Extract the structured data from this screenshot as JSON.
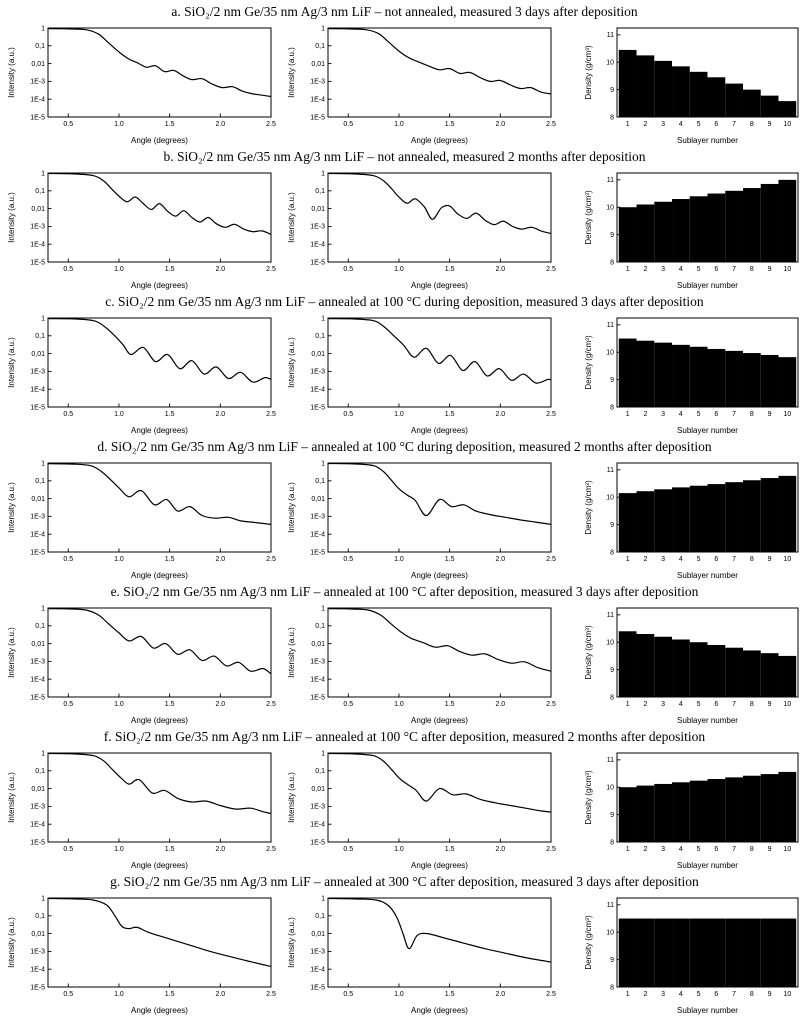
{
  "colors": {
    "curve": "#000000",
    "bar": "#000000",
    "frame": "#000000",
    "background": "#ffffff"
  },
  "rows": [
    {
      "id": "a",
      "title": "a. SiO₂/2 nm Ge/35 nm Ag/3 nm LiF – not annealed, measured 3 days after deposition"
    },
    {
      "id": "b",
      "title": "b. SiO₂/2 nm Ge/35 nm Ag/3 nm LiF – not annealed, measured 2 months after deposition"
    },
    {
      "id": "c",
      "title": "c. SiO₂/2 nm Ge/35 nm Ag/3 nm LiF – annealed at 100 °C during deposition, measured 3 days after deposition"
    },
    {
      "id": "d",
      "title": "d. SiO₂/2 nm Ge/35 nm Ag/3 nm LiF – annealed at 100 °C during deposition, measured 2 months after deposition"
    },
    {
      "id": "e",
      "title": "e. SiO₂/2 nm Ge/35 nm Ag/3 nm LiF – annealed at 100 °C after deposition, measured 3 days after deposition"
    },
    {
      "id": "f",
      "title": "f. SiO₂/2 nm Ge/35 nm Ag/3 nm LiF – annealed at 100 °C after deposition, measured 2 months after deposition"
    },
    {
      "id": "g",
      "title": "g. SiO₂/2 nm Ge/35 nm Ag/3 nm LiF – annealed at 300 °C after deposition, measured 3 days after deposition"
    }
  ],
  "axes": {
    "xrr": {
      "xlabel": "Angle (degrees)",
      "ylabel": "Intensity (a.u.)",
      "xlim": [
        0.3,
        2.5
      ],
      "x_ticks": [
        0.5,
        1.0,
        1.5,
        2.0,
        2.5
      ],
      "x_tick_labels": [
        "0.5",
        "1.0",
        "1.5",
        "2.0",
        "2.5"
      ],
      "ylim_log": [
        0,
        -5
      ],
      "y_log_ticks": [
        0,
        -1,
        -2,
        -3,
        -4,
        -5
      ],
      "y_tick_labels": [
        "1",
        "0,1",
        "0,01",
        "1E-3",
        "1E-4",
        "1E-5"
      ],
      "yscale": "log",
      "grid": false,
      "legend": "none"
    },
    "density": {
      "xlabel": "Sublayer number",
      "ylabel": "Density (g/cm³)",
      "xlim": [
        0.4,
        10.6
      ],
      "ylim": [
        8,
        11.25
      ],
      "y_ticks": [
        8,
        9,
        10,
        11
      ],
      "x_tick_labels": [
        "1",
        "2",
        "3",
        "4",
        "5",
        "6",
        "7",
        "8",
        "9",
        "10"
      ],
      "grid": false,
      "legend": "none"
    }
  },
  "chart_data": [
    {
      "id": "a-left",
      "row": "a",
      "panel": "left",
      "type": "line",
      "x": [
        0.3,
        0.5,
        0.68,
        0.8,
        0.9,
        1.0,
        1.1,
        1.18,
        1.27,
        1.36,
        1.45,
        1.54,
        1.63,
        1.72,
        1.82,
        1.92,
        2.02,
        2.12,
        2.22,
        2.32,
        2.42,
        2.5
      ],
      "y_log10": [
        -0.04,
        -0.05,
        -0.1,
        -0.35,
        -0.85,
        -1.35,
        -1.75,
        -1.95,
        -2.2,
        -2.12,
        -2.45,
        -2.38,
        -2.68,
        -2.9,
        -2.85,
        -3.15,
        -3.35,
        -3.3,
        -3.55,
        -3.7,
        -3.78,
        -3.85
      ]
    },
    {
      "id": "a-mid",
      "row": "a",
      "panel": "middle",
      "type": "line",
      "x": [
        0.3,
        0.5,
        0.68,
        0.8,
        0.9,
        1.0,
        1.1,
        1.2,
        1.3,
        1.4,
        1.5,
        1.6,
        1.7,
        1.8,
        1.9,
        2.0,
        2.1,
        2.2,
        2.3,
        2.4,
        2.5
      ],
      "y_log10": [
        -0.04,
        -0.05,
        -0.1,
        -0.32,
        -0.8,
        -1.3,
        -1.68,
        -1.92,
        -2.15,
        -2.35,
        -2.28,
        -2.55,
        -2.5,
        -2.78,
        -3.0,
        -2.95,
        -3.2,
        -3.4,
        -3.35,
        -3.6,
        -3.7
      ]
    },
    {
      "id": "a-density",
      "row": "a",
      "panel": "right",
      "type": "bar",
      "categories": [
        1,
        2,
        3,
        4,
        5,
        6,
        7,
        8,
        9,
        10
      ],
      "values": [
        10.45,
        10.25,
        10.05,
        9.85,
        9.65,
        9.45,
        9.22,
        9.0,
        8.78,
        8.58
      ]
    },
    {
      "id": "b-left",
      "row": "b",
      "panel": "left",
      "type": "line",
      "x": [
        0.3,
        0.55,
        0.75,
        0.85,
        0.92,
        1.0,
        1.08,
        1.16,
        1.24,
        1.32,
        1.4,
        1.48,
        1.56,
        1.64,
        1.72,
        1.8,
        1.88,
        1.96,
        2.05,
        2.14,
        2.23,
        2.32,
        2.41,
        2.5
      ],
      "y_log10": [
        -0.03,
        -0.05,
        -0.15,
        -0.45,
        -0.85,
        -1.3,
        -1.62,
        -1.35,
        -1.72,
        -2.05,
        -1.72,
        -2.15,
        -2.42,
        -2.12,
        -2.5,
        -2.75,
        -2.5,
        -2.85,
        -3.05,
        -2.88,
        -3.15,
        -3.3,
        -3.25,
        -3.45
      ]
    },
    {
      "id": "b-mid",
      "row": "b",
      "panel": "middle",
      "type": "line",
      "x": [
        0.3,
        0.55,
        0.75,
        0.85,
        0.93,
        1.0,
        1.08,
        1.16,
        1.25,
        1.33,
        1.42,
        1.5,
        1.58,
        1.67,
        1.76,
        1.85,
        1.94,
        2.03,
        2.12,
        2.21,
        2.31,
        2.4,
        2.5
      ],
      "y_log10": [
        -0.03,
        -0.05,
        -0.15,
        -0.45,
        -0.9,
        -1.35,
        -1.7,
        -1.45,
        -1.9,
        -2.6,
        -1.95,
        -1.85,
        -2.3,
        -2.55,
        -2.25,
        -2.65,
        -2.9,
        -2.7,
        -3.0,
        -3.15,
        -3.05,
        -3.25,
        -3.4
      ]
    },
    {
      "id": "b-density",
      "row": "b",
      "panel": "right",
      "type": "bar",
      "categories": [
        1,
        2,
        3,
        4,
        5,
        6,
        7,
        8,
        9,
        10
      ],
      "values": [
        10.0,
        10.1,
        10.2,
        10.3,
        10.4,
        10.5,
        10.6,
        10.7,
        10.85,
        11.0
      ]
    },
    {
      "id": "c-left",
      "row": "c",
      "panel": "left",
      "type": "line",
      "x": [
        0.3,
        0.55,
        0.75,
        0.85,
        0.95,
        1.04,
        1.12,
        1.24,
        1.36,
        1.48,
        1.6,
        1.72,
        1.84,
        1.96,
        2.08,
        2.2,
        2.32,
        2.44,
        2.5
      ],
      "y_log10": [
        -0.04,
        -0.05,
        -0.15,
        -0.45,
        -0.95,
        -1.5,
        -2.05,
        -1.65,
        -2.45,
        -2.05,
        -2.85,
        -2.4,
        -3.15,
        -2.75,
        -3.4,
        -3.05,
        -3.6,
        -3.35,
        -3.45
      ]
    },
    {
      "id": "c-mid",
      "row": "c",
      "panel": "middle",
      "type": "line",
      "x": [
        0.3,
        0.55,
        0.75,
        0.85,
        0.95,
        1.05,
        1.15,
        1.27,
        1.39,
        1.51,
        1.63,
        1.75,
        1.87,
        1.99,
        2.11,
        2.23,
        2.35,
        2.47,
        2.5
      ],
      "y_log10": [
        -0.04,
        -0.05,
        -0.15,
        -0.48,
        -1.0,
        -1.55,
        -2.2,
        -1.7,
        -2.55,
        -2.1,
        -2.95,
        -2.45,
        -3.25,
        -2.85,
        -3.5,
        -3.15,
        -3.65,
        -3.45,
        -3.5
      ]
    },
    {
      "id": "c-density",
      "row": "c",
      "panel": "right",
      "type": "bar",
      "categories": [
        1,
        2,
        3,
        4,
        5,
        6,
        7,
        8,
        9,
        10
      ],
      "values": [
        10.5,
        10.42,
        10.35,
        10.27,
        10.2,
        10.12,
        10.05,
        9.97,
        9.9,
        9.82
      ]
    },
    {
      "id": "d-left",
      "row": "d",
      "panel": "left",
      "type": "line",
      "x": [
        0.3,
        0.55,
        0.72,
        0.82,
        0.92,
        1.0,
        1.1,
        1.22,
        1.35,
        1.47,
        1.58,
        1.7,
        1.82,
        1.95,
        2.08,
        2.2,
        2.35,
        2.5
      ],
      "y_log10": [
        -0.04,
        -0.06,
        -0.15,
        -0.45,
        -0.95,
        -1.4,
        -1.9,
        -1.55,
        -2.35,
        -2.05,
        -2.7,
        -2.45,
        -2.95,
        -3.1,
        -3.05,
        -3.25,
        -3.35,
        -3.45
      ]
    },
    {
      "id": "d-mid",
      "row": "d",
      "panel": "middle",
      "type": "line",
      "x": [
        0.3,
        0.55,
        0.75,
        0.85,
        0.93,
        1.0,
        1.08,
        1.16,
        1.27,
        1.4,
        1.52,
        1.64,
        1.76,
        1.9,
        2.05,
        2.2,
        2.35,
        2.5
      ],
      "y_log10": [
        -0.03,
        -0.05,
        -0.15,
        -0.5,
        -1.0,
        -1.45,
        -1.8,
        -2.1,
        -2.95,
        -2.05,
        -2.45,
        -2.35,
        -2.7,
        -2.9,
        -3.05,
        -3.2,
        -3.32,
        -3.45
      ]
    },
    {
      "id": "d-density",
      "row": "d",
      "panel": "right",
      "type": "bar",
      "categories": [
        1,
        2,
        3,
        4,
        5,
        6,
        7,
        8,
        9,
        10
      ],
      "values": [
        10.15,
        10.22,
        10.29,
        10.36,
        10.42,
        10.48,
        10.55,
        10.62,
        10.7,
        10.78
      ]
    },
    {
      "id": "e-left",
      "row": "e",
      "panel": "left",
      "type": "line",
      "x": [
        0.3,
        0.5,
        0.68,
        0.8,
        0.9,
        1.0,
        1.1,
        1.22,
        1.34,
        1.46,
        1.58,
        1.7,
        1.82,
        1.94,
        2.06,
        2.18,
        2.3,
        2.42,
        2.5
      ],
      "y_log10": [
        -0.04,
        -0.05,
        -0.12,
        -0.4,
        -0.9,
        -1.4,
        -1.85,
        -1.6,
        -2.25,
        -2.0,
        -2.6,
        -2.35,
        -2.95,
        -2.7,
        -3.25,
        -3.05,
        -3.55,
        -3.4,
        -3.7
      ]
    },
    {
      "id": "e-mid",
      "row": "e",
      "panel": "middle",
      "type": "line",
      "x": [
        0.3,
        0.5,
        0.7,
        0.82,
        0.92,
        1.02,
        1.12,
        1.24,
        1.36,
        1.48,
        1.6,
        1.72,
        1.85,
        1.98,
        2.11,
        2.24,
        2.37,
        2.5
      ],
      "y_log10": [
        -0.04,
        -0.05,
        -0.12,
        -0.4,
        -0.88,
        -1.35,
        -1.7,
        -1.95,
        -2.2,
        -2.12,
        -2.45,
        -2.65,
        -2.58,
        -2.9,
        -3.1,
        -3.02,
        -3.35,
        -3.55
      ]
    },
    {
      "id": "e-density",
      "row": "e",
      "panel": "right",
      "type": "bar",
      "categories": [
        1,
        2,
        3,
        4,
        5,
        6,
        7,
        8,
        9,
        10
      ],
      "values": [
        10.4,
        10.3,
        10.2,
        10.1,
        10.0,
        9.9,
        9.8,
        9.7,
        9.6,
        9.5
      ]
    },
    {
      "id": "f-left",
      "row": "f",
      "panel": "left",
      "type": "line",
      "x": [
        0.3,
        0.55,
        0.75,
        0.85,
        0.93,
        1.02,
        1.1,
        1.2,
        1.33,
        1.45,
        1.58,
        1.72,
        1.86,
        2.0,
        2.15,
        2.3,
        2.42,
        2.5
      ],
      "y_log10": [
        -0.03,
        -0.05,
        -0.15,
        -0.45,
        -0.9,
        -1.4,
        -1.75,
        -1.5,
        -2.25,
        -2.1,
        -2.55,
        -2.75,
        -2.7,
        -2.95,
        -3.15,
        -3.1,
        -3.3,
        -3.4
      ]
    },
    {
      "id": "f-mid",
      "row": "f",
      "panel": "middle",
      "type": "line",
      "x": [
        0.3,
        0.55,
        0.75,
        0.85,
        0.93,
        1.0,
        1.08,
        1.17,
        1.27,
        1.4,
        1.53,
        1.66,
        1.8,
        1.95,
        2.1,
        2.25,
        2.4,
        2.5
      ],
      "y_log10": [
        -0.03,
        -0.05,
        -0.15,
        -0.48,
        -0.95,
        -1.4,
        -1.75,
        -2.1,
        -2.7,
        -2.0,
        -2.35,
        -2.3,
        -2.6,
        -2.8,
        -2.95,
        -3.1,
        -3.25,
        -3.32
      ]
    },
    {
      "id": "f-density",
      "row": "f",
      "panel": "right",
      "type": "bar",
      "categories": [
        1,
        2,
        3,
        4,
        5,
        6,
        7,
        8,
        9,
        10
      ],
      "values": [
        10.0,
        10.06,
        10.12,
        10.18,
        10.24,
        10.3,
        10.36,
        10.42,
        10.48,
        10.56
      ]
    },
    {
      "id": "g-left",
      "row": "g",
      "panel": "left",
      "type": "line",
      "x": [
        0.3,
        0.55,
        0.75,
        0.88,
        0.96,
        1.03,
        1.1,
        1.18,
        1.3,
        1.5,
        1.7,
        1.9,
        2.1,
        2.3,
        2.5
      ],
      "y_log10": [
        -0.03,
        -0.05,
        -0.12,
        -0.4,
        -1.0,
        -1.6,
        -1.72,
        -1.65,
        -1.95,
        -2.3,
        -2.65,
        -3.0,
        -3.3,
        -3.58,
        -3.85
      ]
    },
    {
      "id": "g-mid",
      "row": "g",
      "panel": "middle",
      "type": "line",
      "x": [
        0.3,
        0.55,
        0.78,
        0.9,
        0.98,
        1.04,
        1.1,
        1.18,
        1.28,
        1.45,
        1.65,
        1.85,
        2.05,
        2.25,
        2.45,
        2.5
      ],
      "y_log10": [
        -0.03,
        -0.05,
        -0.12,
        -0.45,
        -1.1,
        -2.0,
        -2.85,
        -2.1,
        -2.0,
        -2.25,
        -2.55,
        -2.85,
        -3.1,
        -3.35,
        -3.55,
        -3.6
      ]
    },
    {
      "id": "g-density",
      "row": "g",
      "panel": "right",
      "type": "bar",
      "categories": [
        1,
        2,
        3,
        4,
        5,
        6,
        7,
        8,
        9,
        10
      ],
      "values": [
        10.5,
        10.5,
        10.5,
        10.5,
        10.5,
        10.5,
        10.5,
        10.5,
        10.5,
        10.5
      ]
    }
  ]
}
